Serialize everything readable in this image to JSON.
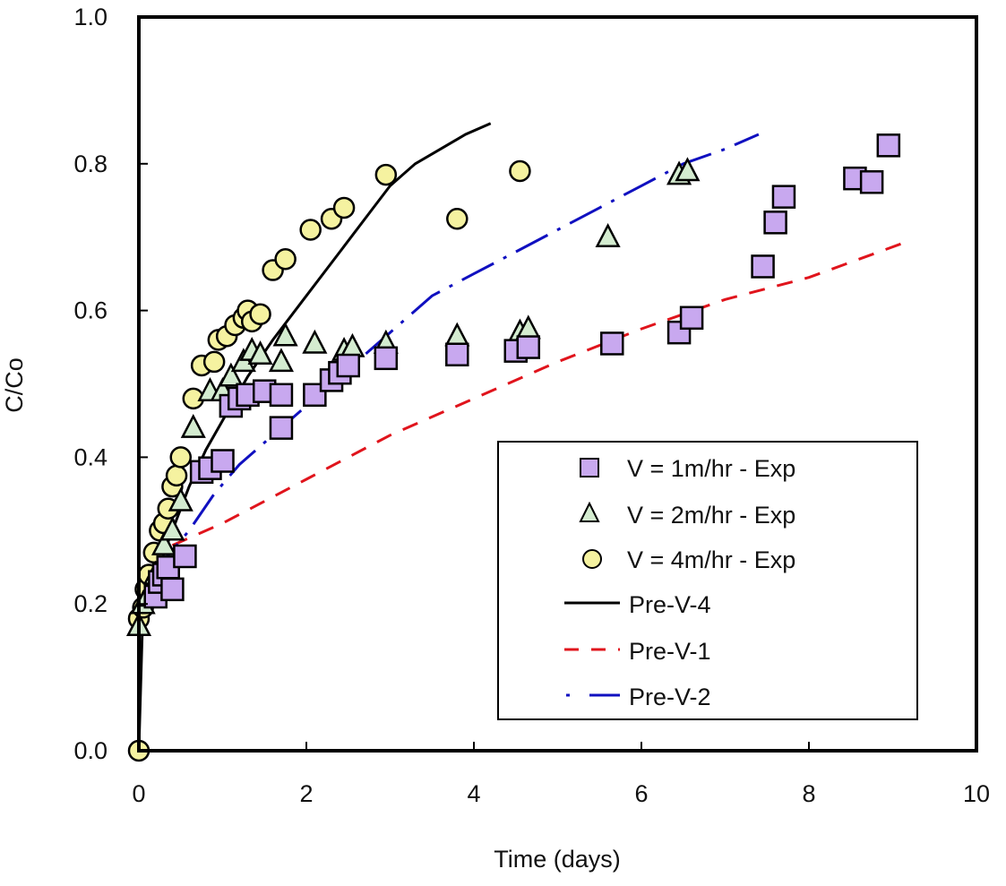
{
  "chart_data": {
    "type": "scatter",
    "title": "",
    "xlabel": "Time (days)",
    "ylabel": "C/Co",
    "xlim": [
      0,
      10
    ],
    "ylim": [
      0,
      1.0
    ],
    "x_ticks": [
      "0",
      "2",
      "4",
      "6",
      "8",
      "10"
    ],
    "y_ticks": [
      "0.0",
      "0.2",
      "0.4",
      "0.6",
      "0.8",
      "1.0"
    ],
    "grid": false,
    "legend_position": "bottom-right",
    "series": [
      {
        "name": "V = 1m/hr - Exp",
        "kind": "marker",
        "marker": "square",
        "fill": "#c8a8ef",
        "stroke": "#000000",
        "x": [
          0.2,
          0.25,
          0.3,
          0.35,
          0.4,
          0.55,
          0.75,
          0.85,
          1.0,
          1.1,
          1.2,
          1.3,
          1.5,
          1.7,
          1.7,
          2.1,
          2.3,
          2.4,
          2.5,
          2.95,
          3.8,
          4.5,
          4.65,
          5.65,
          6.45,
          6.6,
          7.45,
          7.6,
          7.7,
          8.55,
          8.75,
          8.95
        ],
        "y": [
          0.21,
          0.23,
          0.24,
          0.25,
          0.22,
          0.265,
          0.38,
          0.385,
          0.395,
          0.47,
          0.48,
          0.485,
          0.49,
          0.485,
          0.44,
          0.485,
          0.505,
          0.515,
          0.525,
          0.535,
          0.54,
          0.545,
          0.55,
          0.555,
          0.57,
          0.59,
          0.66,
          0.72,
          0.755,
          0.78,
          0.775,
          0.825
        ]
      },
      {
        "name": "V = 2m/hr - Exp",
        "kind": "marker",
        "marker": "triangle",
        "fill": "#d4ecd0",
        "stroke": "#000000",
        "x": [
          0.0,
          0.05,
          0.1,
          0.2,
          0.3,
          0.4,
          0.5,
          0.65,
          0.85,
          1.0,
          1.1,
          1.25,
          1.35,
          1.45,
          1.7,
          1.75,
          2.1,
          2.45,
          2.55,
          2.95,
          3.8,
          4.55,
          4.65,
          5.6,
          6.45,
          6.55
        ],
        "y": [
          0.17,
          0.2,
          0.21,
          0.24,
          0.28,
          0.3,
          0.34,
          0.44,
          0.49,
          0.49,
          0.51,
          0.53,
          0.545,
          0.54,
          0.53,
          0.565,
          0.555,
          0.545,
          0.55,
          0.555,
          0.565,
          0.57,
          0.575,
          0.7,
          0.785,
          0.79
        ]
      },
      {
        "name": "V = 4m/hr - Exp",
        "kind": "marker",
        "marker": "circle",
        "fill": "#f5f2a0",
        "stroke": "#000000",
        "x": [
          0.0,
          0.0,
          0.05,
          0.08,
          0.12,
          0.18,
          0.25,
          0.3,
          0.35,
          0.4,
          0.45,
          0.5,
          0.65,
          0.75,
          0.9,
          0.95,
          1.05,
          1.15,
          1.25,
          1.3,
          1.35,
          1.45,
          1.6,
          1.75,
          2.05,
          2.3,
          2.45,
          2.95,
          3.8,
          4.55
        ],
        "y": [
          0.0,
          0.18,
          0.195,
          0.22,
          0.24,
          0.27,
          0.3,
          0.31,
          0.33,
          0.36,
          0.375,
          0.4,
          0.48,
          0.525,
          0.53,
          0.56,
          0.565,
          0.58,
          0.59,
          0.6,
          0.585,
          0.595,
          0.655,
          0.67,
          0.71,
          0.725,
          0.74,
          0.785,
          0.725,
          0.79
        ]
      },
      {
        "name": "Pre-V-4",
        "kind": "line",
        "style": "solid",
        "color": "#000000",
        "x": [
          0.0,
          0.05,
          0.2,
          0.4,
          0.6,
          0.8,
          1.0,
          1.3,
          1.6,
          2.0,
          2.4,
          2.8,
          3.0,
          3.3,
          3.6,
          3.9,
          4.2
        ],
        "y": [
          0.0,
          0.2,
          0.24,
          0.3,
          0.36,
          0.41,
          0.45,
          0.51,
          0.56,
          0.62,
          0.68,
          0.74,
          0.77,
          0.8,
          0.82,
          0.84,
          0.855
        ]
      },
      {
        "name": "Pre-V-1",
        "kind": "line",
        "style": "dashed",
        "color": "#e0141c",
        "x": [
          0.4,
          1.0,
          2.0,
          3.0,
          4.0,
          5.0,
          6.0,
          7.0,
          8.0,
          9.2
        ],
        "y": [
          0.28,
          0.31,
          0.37,
          0.43,
          0.48,
          0.53,
          0.575,
          0.615,
          0.645,
          0.695
        ]
      },
      {
        "name": "Pre-V-2",
        "kind": "line",
        "style": "dash-dot",
        "color": "#1010c0",
        "x": [
          0.0,
          0.0,
          0.3,
          0.6,
          0.9,
          1.2,
          1.6,
          2.0,
          2.5,
          3.0,
          3.5,
          4.0,
          4.5,
          5.0,
          5.5,
          6.0,
          6.5,
          7.0,
          7.4
        ],
        "y": [
          0.0,
          0.2,
          0.26,
          0.3,
          0.35,
          0.39,
          0.43,
          0.47,
          0.52,
          0.57,
          0.62,
          0.65,
          0.68,
          0.71,
          0.74,
          0.77,
          0.8,
          0.82,
          0.84
        ]
      }
    ]
  }
}
